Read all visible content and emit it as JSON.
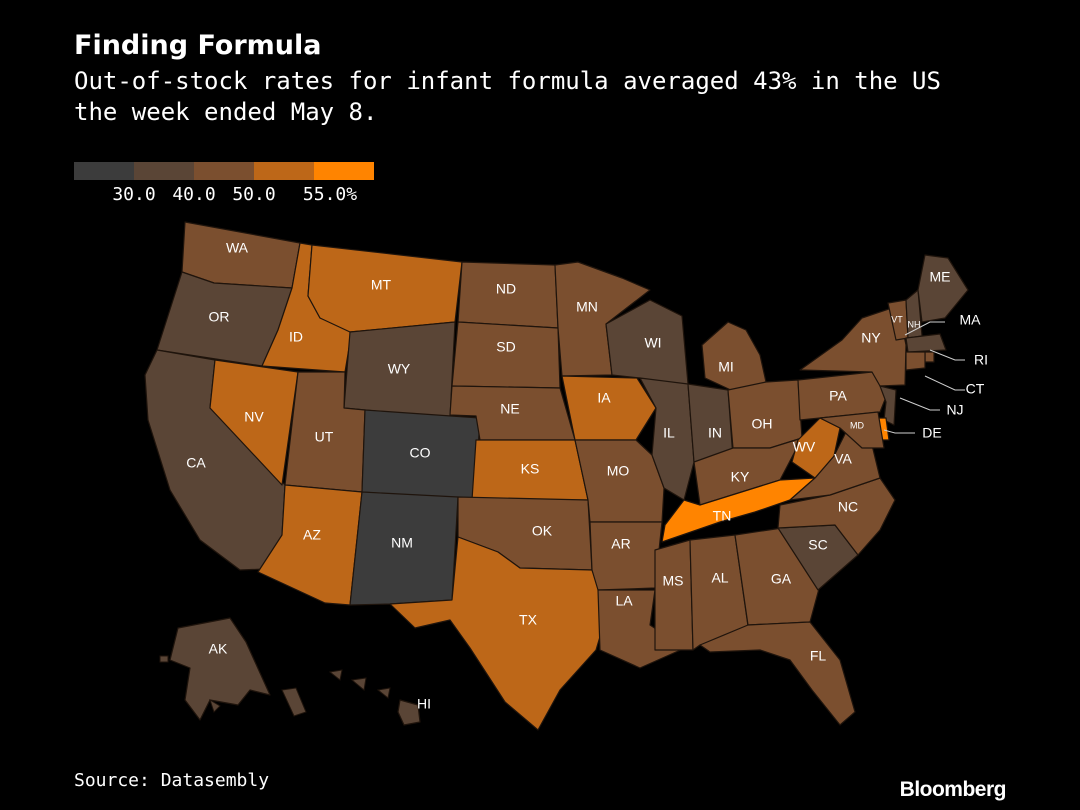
{
  "title": "Finding Formula",
  "subtitle": "Out-of-stock rates for infant formula averaged 43% in the US the week ended May 8.",
  "source": "Source: Datasembly",
  "brand": "Bloomberg",
  "colors": {
    "background": "#000000",
    "border": "#1f140c",
    "bins": [
      "#3c3c3c",
      "#5a4536",
      "#7b4f2f",
      "#bd6718",
      "#ff8400"
    ]
  },
  "legend": {
    "ticks": [
      "30.0",
      "40.0",
      "50.0",
      "55.0%"
    ]
  },
  "states": [
    {
      "abbr": "WA",
      "bin": 2
    },
    {
      "abbr": "OR",
      "bin": 1
    },
    {
      "abbr": "CA",
      "bin": 1
    },
    {
      "abbr": "ID",
      "bin": 3
    },
    {
      "abbr": "NV",
      "bin": 3
    },
    {
      "abbr": "MT",
      "bin": 3
    },
    {
      "abbr": "WY",
      "bin": 1
    },
    {
      "abbr": "UT",
      "bin": 2
    },
    {
      "abbr": "AZ",
      "bin": 3
    },
    {
      "abbr": "CO",
      "bin": 0
    },
    {
      "abbr": "NM",
      "bin": 0
    },
    {
      "abbr": "ND",
      "bin": 2
    },
    {
      "abbr": "SD",
      "bin": 2
    },
    {
      "abbr": "NE",
      "bin": 2
    },
    {
      "abbr": "KS",
      "bin": 3
    },
    {
      "abbr": "OK",
      "bin": 2
    },
    {
      "abbr": "TX",
      "bin": 3
    },
    {
      "abbr": "MN",
      "bin": 2
    },
    {
      "abbr": "IA",
      "bin": 3
    },
    {
      "abbr": "MO",
      "bin": 2
    },
    {
      "abbr": "AR",
      "bin": 2
    },
    {
      "abbr": "LA",
      "bin": 2
    },
    {
      "abbr": "WI",
      "bin": 1
    },
    {
      "abbr": "IL",
      "bin": 1
    },
    {
      "abbr": "IN",
      "bin": 1
    },
    {
      "abbr": "MI",
      "bin": 2
    },
    {
      "abbr": "OH",
      "bin": 2
    },
    {
      "abbr": "KY",
      "bin": 2
    },
    {
      "abbr": "TN",
      "bin": 4
    },
    {
      "abbr": "MS",
      "bin": 2
    },
    {
      "abbr": "AL",
      "bin": 2
    },
    {
      "abbr": "GA",
      "bin": 2
    },
    {
      "abbr": "FL",
      "bin": 2
    },
    {
      "abbr": "SC",
      "bin": 1
    },
    {
      "abbr": "NC",
      "bin": 2
    },
    {
      "abbr": "VA",
      "bin": 2
    },
    {
      "abbr": "WV",
      "bin": 3
    },
    {
      "abbr": "PA",
      "bin": 2
    },
    {
      "abbr": "NY",
      "bin": 2
    },
    {
      "abbr": "VT",
      "bin": 2
    },
    {
      "abbr": "NH",
      "bin": 1
    },
    {
      "abbr": "ME",
      "bin": 1
    },
    {
      "abbr": "MA",
      "bin": 1
    },
    {
      "abbr": "RI",
      "bin": 2
    },
    {
      "abbr": "CT",
      "bin": 2
    },
    {
      "abbr": "NJ",
      "bin": 1
    },
    {
      "abbr": "DE",
      "bin": 4
    },
    {
      "abbr": "MD",
      "bin": 2
    },
    {
      "abbr": "AK",
      "bin": 1
    },
    {
      "abbr": "HI",
      "bin": 1
    }
  ]
}
